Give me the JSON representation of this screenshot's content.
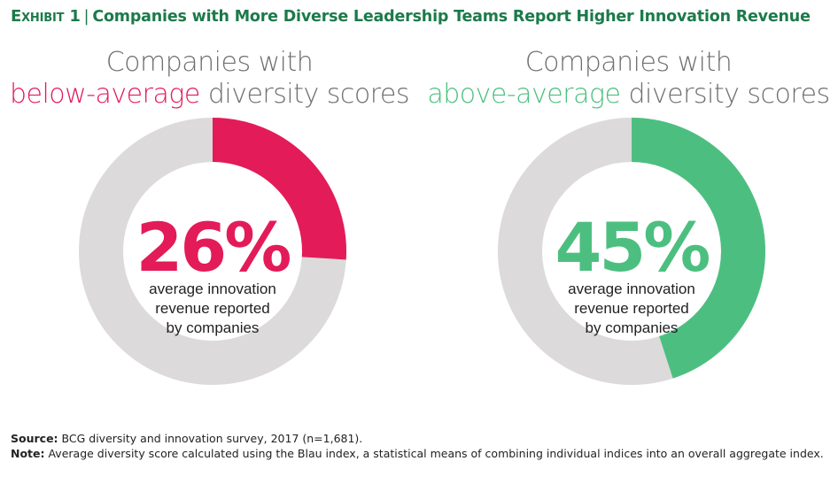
{
  "title": {
    "exhibit": "Exhibit 1",
    "separator": "|",
    "text": "Companies with More Diverse Leadership Teams Report Higher Innovation Revenue"
  },
  "colors": {
    "title": "#1c7a4a",
    "below_average": "#e31b59",
    "above_average": "#4cbf80",
    "track": "#dcdadb",
    "heading_gray": "#6f6f6f"
  },
  "chart_data": [
    {
      "type": "pie",
      "heading_line1": "Companies with",
      "heading_highlight": "below-average",
      "heading_rest": " diversity scores",
      "value": 26,
      "value_label": "26%",
      "sub_lines": [
        "average innovation",
        "revenue reported",
        "by companies"
      ],
      "color": "#e31b59"
    },
    {
      "type": "pie",
      "heading_line1": "Companies with",
      "heading_highlight": "above-average",
      "heading_rest": " diversity scores",
      "value": 45,
      "value_label": "45%",
      "sub_lines": [
        "average innovation",
        "revenue reported",
        "by companies"
      ],
      "color": "#4cbf80"
    }
  ],
  "footer": {
    "source_label": "Source:",
    "source_text": " BCG diversity and innovation survey, 2017 (n=1,681).",
    "note_label": "Note:",
    "note_text": " Average diversity score calculated using the Blau index, a statistical means of combining individual indices into an overall aggregate index."
  }
}
